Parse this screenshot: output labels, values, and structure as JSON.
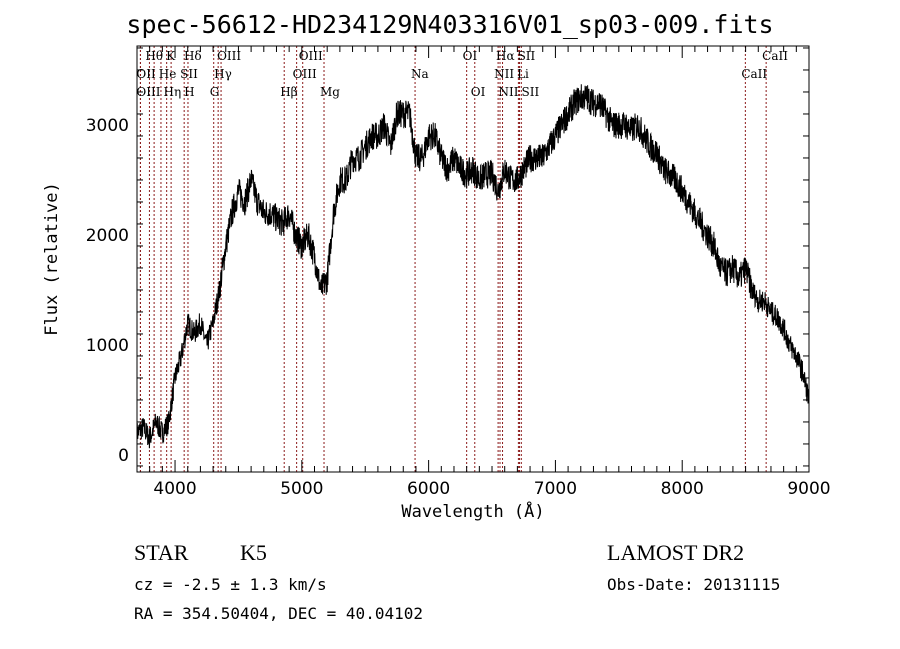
{
  "chart_data": {
    "type": "line",
    "title": "spec-56612-HD234129N403316V01_sp03-009.fits",
    "xlabel": "Wavelength (Å)",
    "ylabel": "Flux (relative)",
    "xlim": [
      3700,
      9000
    ],
    "ylim": [
      -155,
      3718
    ],
    "xticks": [
      4000,
      5000,
      6000,
      7000,
      8000,
      9000
    ],
    "yticks": [
      0,
      1000,
      2000,
      3000
    ],
    "grid": false,
    "series": [
      {
        "name": "spectrum",
        "x_start": 3700,
        "x_step": 50,
        "values": [
          200,
          250,
          150,
          300,
          200,
          300,
          700,
          900,
          1200,
          1100,
          1200,
          1000,
          1200,
          1500,
          1900,
          2200,
          2400,
          2300,
          2500,
          2300,
          2200,
          2200,
          2150,
          2100,
          2200,
          2000,
          1900,
          2000,
          1800,
          1500,
          1600,
          2200,
          2500,
          2500,
          2700,
          2700,
          2800,
          2900,
          2900,
          3000,
          2800,
          3100,
          3100,
          3100,
          2700,
          2700,
          2900,
          2900,
          2700,
          2600,
          2700,
          2600,
          2550,
          2600,
          2500,
          2550,
          2550,
          2400,
          2600,
          2500,
          2500,
          2600,
          2700,
          2700,
          2700,
          2800,
          2900,
          3000,
          3100,
          3200,
          3250,
          3250,
          3200,
          3200,
          3100,
          3000,
          3000,
          3000,
          2950,
          3000,
          2900,
          2800,
          2750,
          2600,
          2550,
          2500,
          2400,
          2300,
          2200,
          2100,
          2000,
          1900,
          1700,
          1650,
          1700,
          1600,
          1700,
          1500,
          1400,
          1400,
          1300,
          1250,
          1150,
          1000,
          900,
          750,
          500
        ]
      }
    ],
    "line_markers": [
      {
        "label": "Hθ",
        "wave": 3798,
        "row": 0
      },
      {
        "label": "OII",
        "wave": 3727,
        "row": 1
      },
      {
        "label": "OIII",
        "wave": 3727,
        "row": 2
      },
      {
        "label": "He",
        "wave": 3889,
        "row": 1
      },
      {
        "label": "Hη",
        "wave": 3835,
        "row": 2
      },
      {
        "label": "K",
        "wave": 3934,
        "row": 0
      },
      {
        "label": "H",
        "wave": 3969,
        "row": 2
      },
      {
        "label": "SII",
        "wave": 4072,
        "row": 1
      },
      {
        "label": "Hδ",
        "wave": 4102,
        "row": 0
      },
      {
        "label": "OIII",
        "wave": 4363,
        "row": 0
      },
      {
        "label": "Hγ",
        "wave": 4340,
        "row": 1
      },
      {
        "label": "G",
        "wave": 4305,
        "row": 2
      },
      {
        "label": "Hβ",
        "wave": 4861,
        "row": 2
      },
      {
        "label": "OIII",
        "wave": 5007,
        "row": 0
      },
      {
        "label": "OIII",
        "wave": 4959,
        "row": 1
      },
      {
        "label": "Mg",
        "wave": 5175,
        "row": 2
      },
      {
        "label": "Na",
        "wave": 5893,
        "row": 1
      },
      {
        "label": "OI",
        "wave": 6300,
        "row": 0
      },
      {
        "label": "OI",
        "wave": 6364,
        "row": 2
      },
      {
        "label": "Hα",
        "wave": 6563,
        "row": 0
      },
      {
        "label": "NII",
        "wave": 6548,
        "row": 1
      },
      {
        "label": "NII",
        "wave": 6583,
        "row": 2
      },
      {
        "label": "SII",
        "wave": 6717,
        "row": 0
      },
      {
        "label": "Li",
        "wave": 6708,
        "row": 1
      },
      {
        "label": "SII",
        "wave": 6731,
        "row": 2
      },
      {
        "label": "CaII",
        "wave": 8662,
        "row": 0
      },
      {
        "label": "CaII",
        "wave": 8498,
        "row": 1
      }
    ],
    "colors": {
      "line": "#000000",
      "marker": "#8b1a1a"
    }
  },
  "info": {
    "class": "STAR",
    "subclass": "K5",
    "survey": "LAMOST DR2",
    "cz": "cz = -2.5 ± 1.3 km/s",
    "obsdate": "Obs-Date: 20131115",
    "radec": "RA = 354.50404, DEC =  40.04102"
  }
}
